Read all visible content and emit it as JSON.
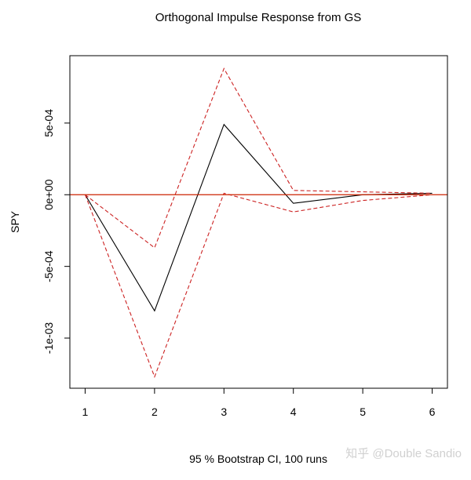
{
  "chart_data": {
    "type": "line",
    "title": "Orthogonal Impulse Response from GS",
    "xlabel": "95 % Bootstrap CI,  100 runs",
    "ylabel": "SPY",
    "x": [
      1,
      2,
      3,
      4,
      5,
      6
    ],
    "xlim": [
      0.78,
      6.22
    ],
    "ylim": [
      -0.00135,
      0.00097
    ],
    "x_ticks": [
      1,
      2,
      3,
      4,
      5,
      6
    ],
    "x_tick_labels": [
      "1",
      "2",
      "3",
      "4",
      "5",
      "6"
    ],
    "y_ticks": [
      -0.001,
      -0.0005,
      0,
      0.0005
    ],
    "y_tick_labels": [
      "-1e-03",
      "-5e-04",
      "0e+00",
      "5e-04"
    ],
    "grid": false,
    "legend": "none",
    "zero_line": {
      "value": 0,
      "color": "#cc2200"
    },
    "series": [
      {
        "values": [
          0,
          -0.00081,
          0.00049,
          -6e-05,
          0.0,
          1e-05
        ],
        "color": "#000000",
        "dash": "solid"
      },
      {
        "values": [
          0,
          -0.00037,
          0.00088,
          3e-05,
          2e-05,
          1e-05
        ],
        "color": "#cc2222",
        "dash": "dashed"
      },
      {
        "values": [
          0,
          -0.00127,
          1e-05,
          -0.00012,
          -4e-05,
          0.0
        ],
        "color": "#cc2222",
        "dash": "dashed"
      }
    ]
  },
  "watermark": {
    "text": "知乎 @Double Sandio"
  }
}
